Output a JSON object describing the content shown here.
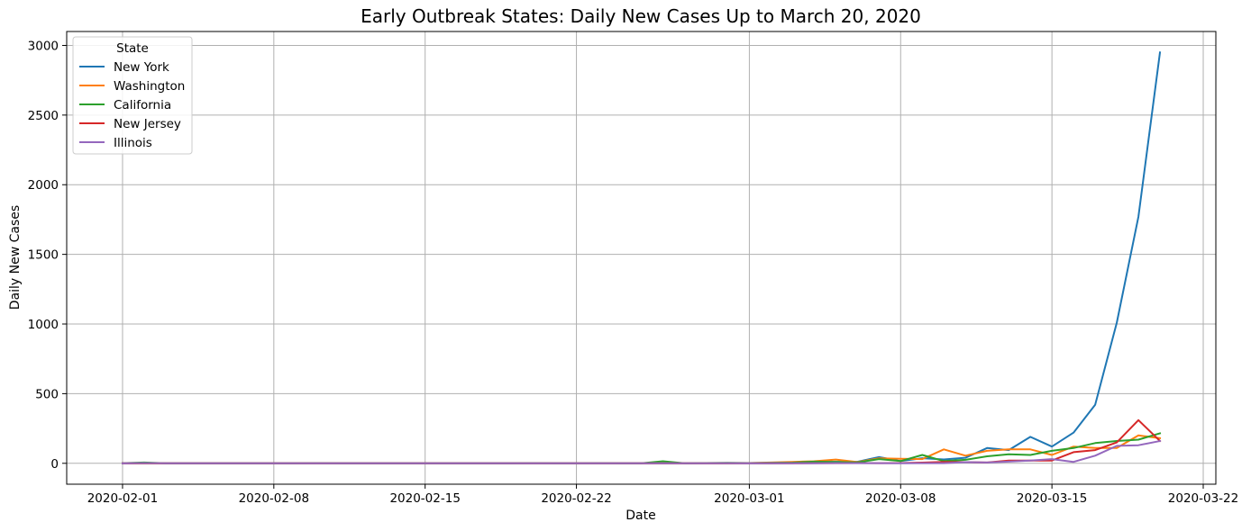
{
  "chart_data": {
    "type": "line",
    "title": "Early Outbreak States: Daily New Cases Up to March 20, 2020",
    "xlabel": "Date",
    "ylabel": "Daily New Cases",
    "x_axis": "date",
    "xlim": [
      "2020-01-29T10:00",
      "2020-03-22T14:00"
    ],
    "ylim": [
      -150,
      3100
    ],
    "xticks": [
      "2020-02-01",
      "2020-02-08",
      "2020-02-15",
      "2020-02-22",
      "2020-03-01",
      "2020-03-08",
      "2020-03-15",
      "2020-03-22"
    ],
    "yticks": [
      0,
      500,
      1000,
      1500,
      2000,
      2500,
      3000
    ],
    "grid": true,
    "legend": {
      "title": "State",
      "position": "top-left"
    },
    "x": [
      "2020-02-01",
      "2020-02-02",
      "2020-02-03",
      "2020-02-04",
      "2020-02-05",
      "2020-02-06",
      "2020-02-07",
      "2020-02-08",
      "2020-02-09",
      "2020-02-10",
      "2020-02-11",
      "2020-02-12",
      "2020-02-13",
      "2020-02-14",
      "2020-02-15",
      "2020-02-16",
      "2020-02-17",
      "2020-02-18",
      "2020-02-19",
      "2020-02-20",
      "2020-02-21",
      "2020-02-22",
      "2020-02-23",
      "2020-02-24",
      "2020-02-25",
      "2020-02-26",
      "2020-02-27",
      "2020-02-28",
      "2020-02-29",
      "2020-03-01",
      "2020-03-02",
      "2020-03-03",
      "2020-03-04",
      "2020-03-05",
      "2020-03-06",
      "2020-03-07",
      "2020-03-08",
      "2020-03-09",
      "2020-03-10",
      "2020-03-11",
      "2020-03-12",
      "2020-03-13",
      "2020-03-14",
      "2020-03-15",
      "2020-03-16",
      "2020-03-17",
      "2020-03-18",
      "2020-03-19",
      "2020-03-20"
    ],
    "series": [
      {
        "name": "New York",
        "color": "#1f77b4",
        "values": [
          0,
          0,
          0,
          0,
          0,
          0,
          0,
          0,
          0,
          0,
          0,
          0,
          0,
          0,
          0,
          0,
          0,
          0,
          0,
          0,
          0,
          0,
          0,
          0,
          0,
          0,
          0,
          0,
          0,
          1,
          0,
          1,
          9,
          11,
          11,
          45,
          16,
          37,
          28,
          40,
          110,
          95,
          190,
          120,
          220,
          420,
          1010,
          1770,
          2950
        ]
      },
      {
        "name": "Washington",
        "color": "#ff7f0e",
        "values": [
          0,
          0,
          0,
          0,
          0,
          0,
          0,
          0,
          0,
          0,
          0,
          0,
          0,
          0,
          0,
          0,
          0,
          0,
          0,
          0,
          0,
          0,
          0,
          0,
          0,
          0,
          0,
          0,
          1,
          2,
          6,
          10,
          15,
          27,
          9,
          36,
          33,
          30,
          100,
          55,
          90,
          100,
          100,
          60,
          120,
          110,
          110,
          200,
          180
        ]
      },
      {
        "name": "California",
        "color": "#2ca02c",
        "values": [
          1,
          6,
          0,
          0,
          0,
          0,
          0,
          0,
          0,
          1,
          0,
          0,
          0,
          0,
          0,
          0,
          0,
          0,
          0,
          1,
          0,
          0,
          1,
          0,
          0,
          15,
          0,
          2,
          4,
          2,
          4,
          5,
          12,
          10,
          7,
          30,
          16,
          60,
          16,
          25,
          50,
          65,
          60,
          90,
          110,
          145,
          160,
          170,
          215
        ]
      },
      {
        "name": "New Jersey",
        "color": "#d62728",
        "values": [
          0,
          0,
          0,
          0,
          0,
          0,
          0,
          0,
          0,
          0,
          0,
          0,
          0,
          0,
          0,
          0,
          0,
          0,
          0,
          0,
          0,
          0,
          0,
          0,
          0,
          0,
          0,
          0,
          0,
          0,
          0,
          0,
          1,
          1,
          2,
          1,
          2,
          5,
          10,
          8,
          6,
          20,
          20,
          20,
          80,
          95,
          150,
          310,
          160
        ]
      },
      {
        "name": "Illinois",
        "color": "#9467bd",
        "values": [
          0,
          2,
          0,
          0,
          0,
          0,
          0,
          0,
          0,
          0,
          0,
          0,
          0,
          0,
          0,
          0,
          0,
          0,
          0,
          0,
          0,
          0,
          0,
          0,
          0,
          0,
          0,
          0,
          1,
          0,
          1,
          0,
          0,
          2,
          1,
          1,
          0,
          1,
          1,
          8,
          6,
          12,
          20,
          30,
          10,
          55,
          125,
          130,
          160
        ]
      }
    ]
  }
}
